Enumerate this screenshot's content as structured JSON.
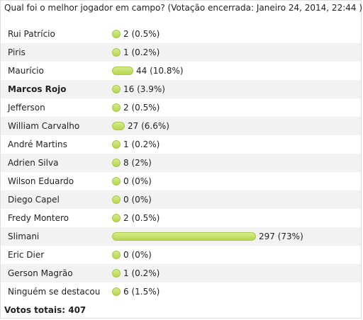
{
  "poll": {
    "title": "Qual foi o melhor jogador em campo?  (Votação encerrada: Janeiro 24, 2014, 22:44 )",
    "bar_color": "#c3de6a",
    "options": [
      {
        "label": "Rui Patrício",
        "votes": 2,
        "percent": "0.5%",
        "display": "2 (0.5%)",
        "share": 0.5
      },
      {
        "label": "Piris",
        "votes": 1,
        "percent": "0.2%",
        "display": "1 (0.2%)",
        "share": 0.2
      },
      {
        "label": "Maurício",
        "votes": 44,
        "percent": "10.8%",
        "display": "44 (10.8%)",
        "share": 10.8
      },
      {
        "label": "Marcos Rojo",
        "votes": 16,
        "percent": "3.9%",
        "display": "16 (3.9%)",
        "share": 3.9,
        "bold": true
      },
      {
        "label": "Jefferson",
        "votes": 2,
        "percent": "0.5%",
        "display": "2 (0.5%)",
        "share": 0.5
      },
      {
        "label": "William Carvalho",
        "votes": 27,
        "percent": "6.6%",
        "display": "27 (6.6%)",
        "share": 6.6
      },
      {
        "label": "André Martins",
        "votes": 1,
        "percent": "0.2%",
        "display": "1 (0.2%)",
        "share": 0.2
      },
      {
        "label": "Adrien Silva",
        "votes": 8,
        "percent": "2%",
        "display": "8 (2%)",
        "share": 2
      },
      {
        "label": "Wilson Eduardo",
        "votes": 0,
        "percent": "0%",
        "display": "0 (0%)",
        "share": 0
      },
      {
        "label": "Diego Capel",
        "votes": 0,
        "percent": "0%",
        "display": "0 (0%)",
        "share": 0
      },
      {
        "label": "Fredy Montero",
        "votes": 2,
        "percent": "0.5%",
        "display": "2 (0.5%)",
        "share": 0.5
      },
      {
        "label": "Slimani",
        "votes": 297,
        "percent": "73%",
        "display": "297 (73%)",
        "share": 73
      },
      {
        "label": "Eric Dier",
        "votes": 0,
        "percent": "0%",
        "display": "0 (0%)",
        "share": 0
      },
      {
        "label": "Gerson Magrão",
        "votes": 1,
        "percent": "0.2%",
        "display": "1 (0.2%)",
        "share": 0.2
      },
      {
        "label": "Ninguém se destacou",
        "votes": 6,
        "percent": "1.5%",
        "display": "6 (1.5%)",
        "share": 1.5
      }
    ],
    "total_label": "Votos totais: 407"
  }
}
